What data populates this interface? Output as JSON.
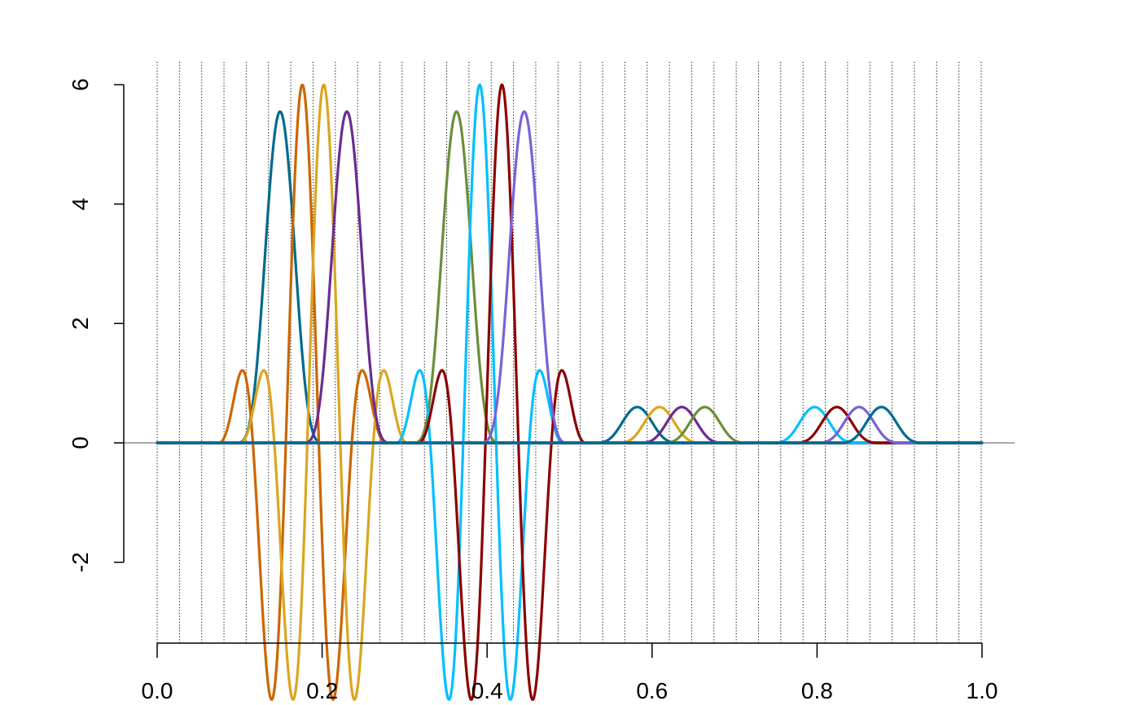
{
  "chart_data": {
    "type": "line",
    "title": "",
    "xlabel": "",
    "ylabel": "",
    "xlim": [
      0,
      1
    ],
    "ylim": [
      -3.3,
      6.4
    ],
    "x_ticks": [
      "0.0",
      "0.2",
      "0.4",
      "0.6",
      "0.8",
      "1.0"
    ],
    "x_tick_values": [
      0,
      0.2,
      0.4,
      0.6,
      0.8,
      1.0
    ],
    "y_ticks": [
      "-2",
      "0",
      "2",
      "4",
      "6"
    ],
    "y_tick_values": [
      -2,
      0,
      2,
      4,
      6
    ],
    "knots_interval": 0.027,
    "reference_line_y": 0,
    "grid": "vertical dotted lines at knots",
    "legend": "none",
    "series": [
      {
        "color": "#006A8E",
        "shape": "bump",
        "center": 0.149,
        "peak": 5.55,
        "width": 0.055
      },
      {
        "color": "#CC6600",
        "shape": "wavelet",
        "center": 0.176,
        "peak": 6.0,
        "width": 0.108
      },
      {
        "color": "#DAA520",
        "shape": "wavelet",
        "center": 0.202,
        "peak": 6.0,
        "width": 0.108
      },
      {
        "color": "#6A2C91",
        "shape": "bump",
        "center": 0.23,
        "peak": 5.55,
        "width": 0.055
      },
      {
        "color": "#6B8E3A",
        "shape": "bump",
        "center": 0.363,
        "peak": 5.55,
        "width": 0.055
      },
      {
        "color": "#00BFFF",
        "shape": "wavelet",
        "center": 0.391,
        "peak": 6.0,
        "width": 0.108
      },
      {
        "color": "#8B0000",
        "shape": "wavelet",
        "center": 0.418,
        "peak": 6.0,
        "width": 0.108
      },
      {
        "color": "#7B61D6",
        "shape": "bump",
        "center": 0.445,
        "peak": 5.55,
        "width": 0.055
      },
      {
        "color": "#006A8E",
        "shape": "bump",
        "center": 0.582,
        "peak": 0.6,
        "width": 0.055
      },
      {
        "color": "#DAA520",
        "shape": "bump",
        "center": 0.609,
        "peak": 0.6,
        "width": 0.055
      },
      {
        "color": "#6A2C91",
        "shape": "bump",
        "center": 0.636,
        "peak": 0.6,
        "width": 0.055
      },
      {
        "color": "#6B8E3A",
        "shape": "bump",
        "center": 0.664,
        "peak": 0.6,
        "width": 0.055
      },
      {
        "color": "#00BFFF",
        "shape": "bump",
        "center": 0.797,
        "peak": 0.6,
        "width": 0.055
      },
      {
        "color": "#8B0000",
        "shape": "bump",
        "center": 0.824,
        "peak": 0.6,
        "width": 0.055
      },
      {
        "color": "#7B61D6",
        "shape": "bump",
        "center": 0.851,
        "peak": 0.6,
        "width": 0.055
      },
      {
        "color": "#006A8E",
        "shape": "bump",
        "center": 0.878,
        "peak": 0.6,
        "width": 0.055
      }
    ]
  }
}
